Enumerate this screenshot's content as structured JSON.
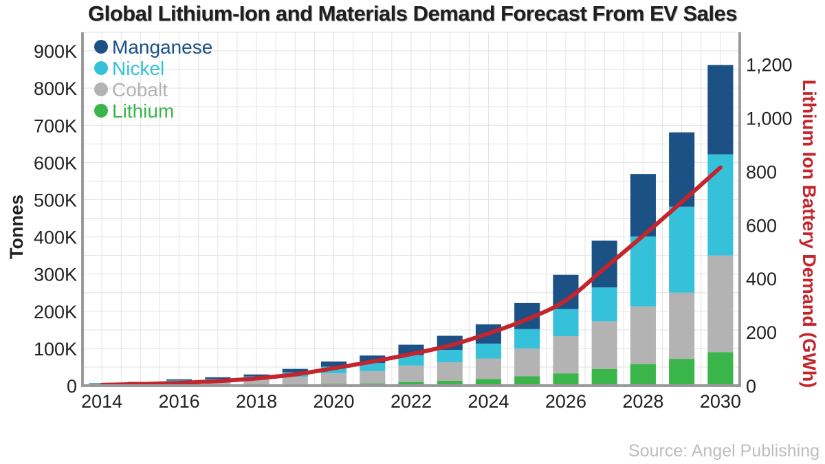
{
  "title": "Global Lithium-Ion and Materials Demand Forecast From EV Sales",
  "source": "Source: Angel Publishing",
  "colors": {
    "manganese": "#1c5186",
    "nickel": "#36c1da",
    "cobalt": "#b3b3b3",
    "lithium": "#3ab54a",
    "battery_line": "#c4252c"
  },
  "chart_data": {
    "type": "bar",
    "stacked": true,
    "categories": [
      "2014",
      "2015",
      "2016",
      "2017",
      "2018",
      "2019",
      "2020",
      "2021",
      "2022",
      "2023",
      "2024",
      "2025",
      "2026",
      "2027",
      "2028",
      "2029",
      "2030"
    ],
    "x_tick_labels": [
      "2014",
      "2016",
      "2018",
      "2020",
      "2022",
      "2024",
      "2026",
      "2028",
      "2030"
    ],
    "ylabel": "Tonnes",
    "ylim": [
      0,
      950000
    ],
    "y_tick_labels": [
      "0",
      "100K",
      "200K",
      "300K",
      "400K",
      "500K",
      "600K",
      "700K",
      "800K",
      "900K"
    ],
    "y_ticks": [
      0,
      100000,
      200000,
      300000,
      400000,
      500000,
      600000,
      700000,
      800000,
      900000
    ],
    "y2label": "Lithium Ion Battery Demand (GWh)",
    "y2lim": [
      0,
      1320
    ],
    "y2_tick_labels": [
      "0",
      "200",
      "400",
      "600",
      "800",
      "1,000",
      "1,200"
    ],
    "y2_ticks": [
      0,
      200,
      400,
      600,
      800,
      1000,
      1200
    ],
    "legend_position": "top-left",
    "grid": true,
    "series": [
      {
        "name": "Lithium",
        "color": "#3ab54a",
        "values": [
          1000,
          1500,
          2000,
          2500,
          3000,
          4000,
          5000,
          6000,
          10000,
          13000,
          18000,
          25000,
          33000,
          45000,
          58000,
          72000,
          90000
        ]
      },
      {
        "name": "Cobalt",
        "color": "#b3b3b3",
        "values": [
          3000,
          4000,
          7000,
          9000,
          14000,
          20000,
          28000,
          33000,
          44000,
          50000,
          55000,
          75000,
          100000,
          128000,
          155000,
          178000,
          260000
        ]
      },
      {
        "name": "Nickel",
        "color": "#36c1da",
        "values": [
          2000,
          3000,
          5000,
          7000,
          8000,
          12000,
          18000,
          22000,
          28000,
          33000,
          40000,
          52000,
          73000,
          91000,
          188000,
          231000,
          272000
        ]
      },
      {
        "name": "Manganese",
        "color": "#1c5186",
        "values": [
          1000,
          1500,
          3000,
          4000,
          5000,
          9000,
          14000,
          20000,
          28000,
          38000,
          52000,
          70000,
          92000,
          126000,
          168000,
          200000,
          240000
        ]
      }
    ],
    "line_series": {
      "name": "Lithium Ion Battery Demand (GWh)",
      "axis": "right",
      "values": [
        3,
        6,
        10,
        17,
        27,
        42,
        65,
        90,
        118,
        150,
        195,
        248,
        318,
        438,
        560,
        686,
        815
      ]
    }
  }
}
